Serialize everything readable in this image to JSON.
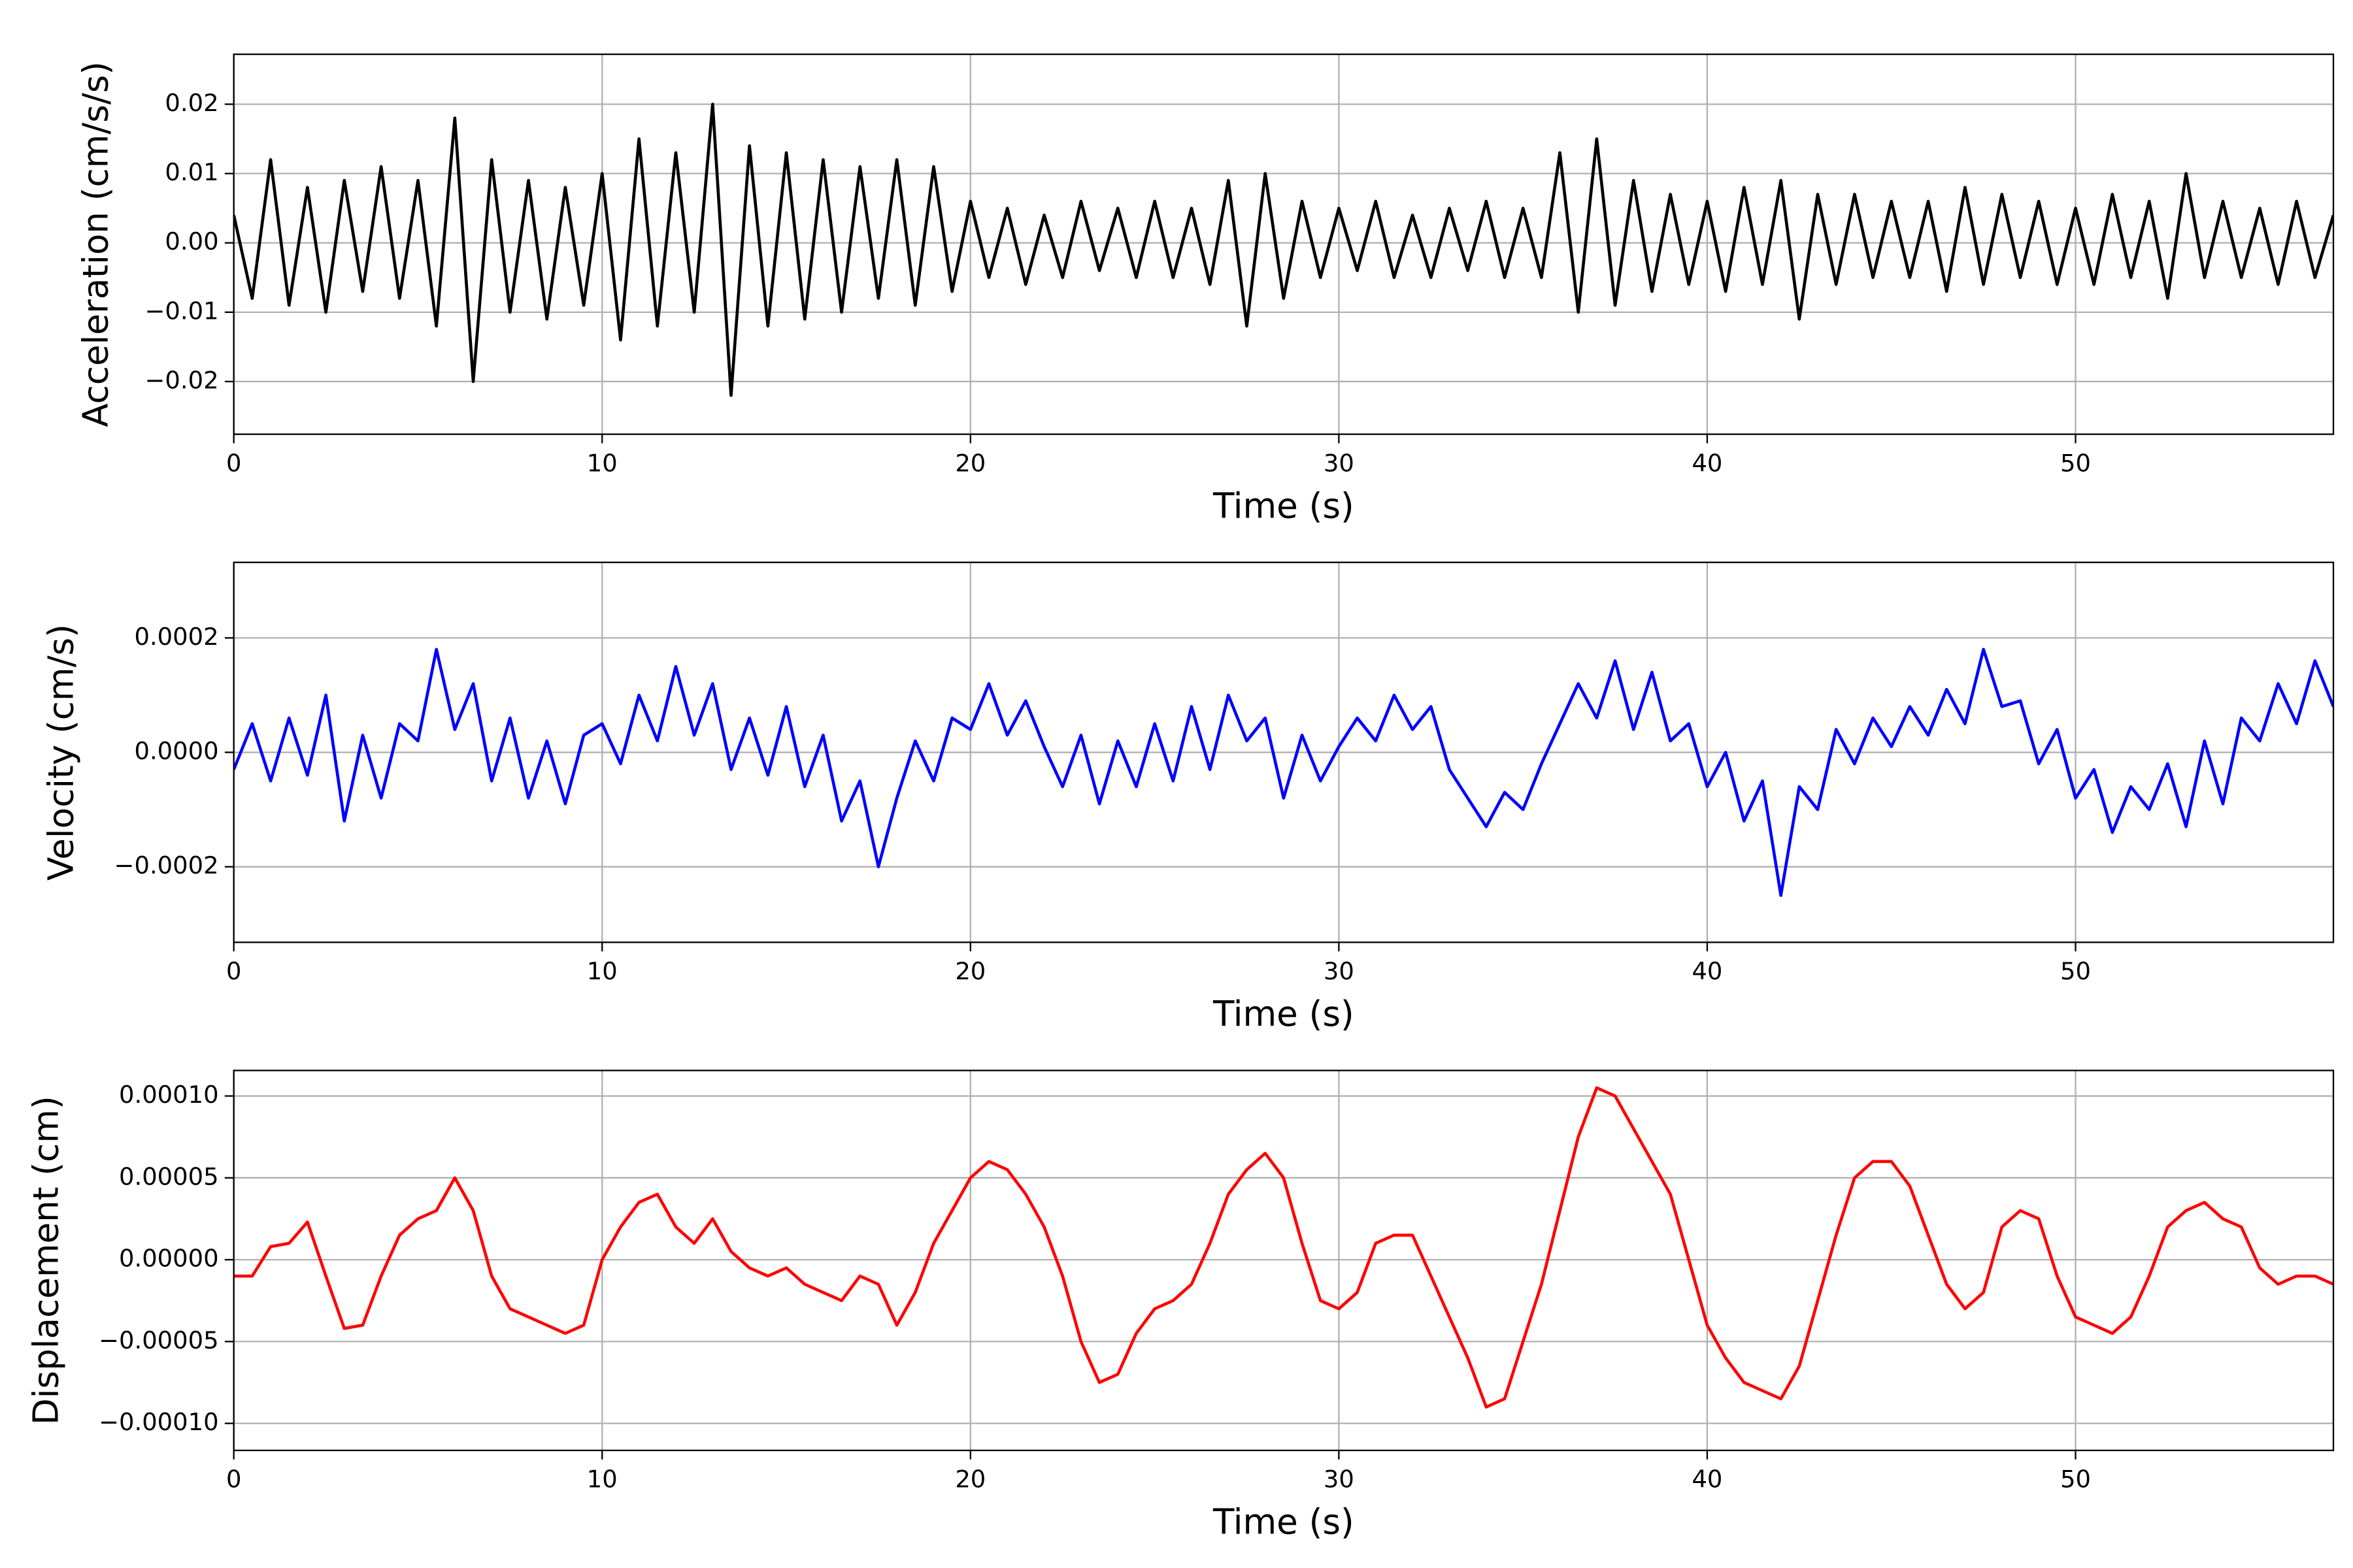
{
  "chart_data": [
    {
      "type": "line",
      "ylabel": "Acceleration (cm/s/s)",
      "xlabel": "Time (s)",
      "color": "#000000",
      "grid": true,
      "xlim": [
        0,
        57
      ],
      "xticks": [
        0,
        10,
        20,
        30,
        40,
        50
      ],
      "ylim": [
        -0.0276,
        0.0272
      ],
      "yticks": [
        {
          "value": -0.02,
          "label": "−0.02"
        },
        {
          "value": -0.01,
          "label": "−0.01"
        },
        {
          "value": 0,
          "label": "0.00"
        },
        {
          "value": 0.01,
          "label": "0.01"
        },
        {
          "value": 0.02,
          "label": "0.02"
        }
      ],
      "x": [
        0,
        0.5,
        1,
        1.5,
        2,
        2.5,
        3,
        3.5,
        4,
        4.5,
        5,
        5.5,
        6,
        6.5,
        7,
        7.5,
        8,
        8.5,
        9,
        9.5,
        10,
        10.5,
        11,
        11.5,
        12,
        12.5,
        13,
        13.5,
        14,
        14.5,
        15,
        15.5,
        16,
        16.5,
        17,
        17.5,
        18,
        18.5,
        19,
        19.5,
        20,
        20.5,
        21,
        21.5,
        22,
        22.5,
        23,
        23.5,
        24,
        24.5,
        25,
        25.5,
        26,
        26.5,
        27,
        27.5,
        28,
        28.5,
        29,
        29.5,
        30,
        30.5,
        31,
        31.5,
        32,
        32.5,
        33,
        33.5,
        34,
        34.5,
        35,
        35.5,
        36,
        36.5,
        37,
        37.5,
        38,
        38.5,
        39,
        39.5,
        40,
        40.5,
        41,
        41.5,
        42,
        42.5,
        43,
        43.5,
        44,
        44.5,
        45,
        45.5,
        46,
        46.5,
        47,
        47.5,
        48,
        48.5,
        49,
        49.5,
        50,
        50.5,
        51,
        51.5,
        52,
        52.5,
        53,
        53.5,
        54,
        54.5,
        55,
        55.5,
        56,
        56.5,
        57
      ],
      "values": [
        0.004,
        -0.008,
        0.012,
        -0.009,
        0.008,
        -0.01,
        0.009,
        -0.007,
        0.011,
        -0.008,
        0.009,
        -0.012,
        0.018,
        -0.02,
        0.012,
        -0.01,
        0.009,
        -0.011,
        0.008,
        -0.009,
        0.01,
        -0.014,
        0.015,
        -0.012,
        0.013,
        -0.01,
        0.02,
        -0.022,
        0.014,
        -0.012,
        0.013,
        -0.011,
        0.012,
        -0.01,
        0.011,
        -0.008,
        0.012,
        -0.009,
        0.011,
        -0.007,
        0.006,
        -0.005,
        0.005,
        -0.006,
        0.004,
        -0.005,
        0.006,
        -0.004,
        0.005,
        -0.005,
        0.006,
        -0.005,
        0.005,
        -0.006,
        0.009,
        -0.012,
        0.01,
        -0.008,
        0.006,
        -0.005,
        0.005,
        -0.004,
        0.006,
        -0.005,
        0.004,
        -0.005,
        0.005,
        -0.004,
        0.006,
        -0.005,
        0.005,
        -0.005,
        0.013,
        -0.01,
        0.015,
        -0.009,
        0.009,
        -0.007,
        0.007,
        -0.006,
        0.006,
        -0.007,
        0.008,
        -0.006,
        0.009,
        -0.011,
        0.007,
        -0.006,
        0.007,
        -0.005,
        0.006,
        -0.005,
        0.006,
        -0.007,
        0.008,
        -0.006,
        0.007,
        -0.005,
        0.006,
        -0.006,
        0.005,
        -0.006,
        0.007,
        -0.005,
        0.006,
        -0.008,
        0.01,
        -0.005,
        0.006,
        -0.005,
        0.005,
        -0.006,
        0.006,
        -0.005,
        0.004
      ]
    },
    {
      "type": "line",
      "ylabel": "Velocity (cm/s)",
      "xlabel": "Time (s)",
      "color": "#0000ff",
      "grid": true,
      "xlim": [
        0,
        57
      ],
      "xticks": [
        0,
        10,
        20,
        30,
        40,
        50
      ],
      "ylim": [
        -0.000332,
        0.000332
      ],
      "yticks": [
        {
          "value": -0.0002,
          "label": "−0.0002"
        },
        {
          "value": 0,
          "label": "0.0000"
        },
        {
          "value": 0.0002,
          "label": "0.0002"
        }
      ],
      "x": [
        0,
        0.5,
        1,
        1.5,
        2,
        2.5,
        3,
        3.5,
        4,
        4.5,
        5,
        5.5,
        6,
        6.5,
        7,
        7.5,
        8,
        8.5,
        9,
        9.5,
        10,
        10.5,
        11,
        11.5,
        12,
        12.5,
        13,
        13.5,
        14,
        14.5,
        15,
        15.5,
        16,
        16.5,
        17,
        17.5,
        18,
        18.5,
        19,
        19.5,
        20,
        20.5,
        21,
        21.5,
        22,
        22.5,
        23,
        23.5,
        24,
        24.5,
        25,
        25.5,
        26,
        26.5,
        27,
        27.5,
        28,
        28.5,
        29,
        29.5,
        30,
        30.5,
        31,
        31.5,
        32,
        32.5,
        33,
        33.5,
        34,
        34.5,
        35,
        35.5,
        36,
        36.5,
        37,
        37.5,
        38,
        38.5,
        39,
        39.5,
        40,
        40.5,
        41,
        41.5,
        42,
        42.5,
        43,
        43.5,
        44,
        44.5,
        45,
        45.5,
        46,
        46.5,
        47,
        47.5,
        48,
        48.5,
        49,
        49.5,
        50,
        50.5,
        51,
        51.5,
        52,
        52.5,
        53,
        53.5,
        54,
        54.5,
        55,
        55.5,
        56,
        56.5,
        57
      ],
      "values": [
        -3e-05,
        5e-05,
        -5e-05,
        6e-05,
        -4e-05,
        0.0001,
        -0.00012,
        3e-05,
        -8e-05,
        5e-05,
        2e-05,
        0.00018,
        4e-05,
        0.00012,
        -5e-05,
        6e-05,
        -8e-05,
        2e-05,
        -9e-05,
        3e-05,
        5e-05,
        -2e-05,
        0.0001,
        2e-05,
        0.00015,
        3e-05,
        0.00012,
        -3e-05,
        6e-05,
        -4e-05,
        8e-05,
        -6e-05,
        3e-05,
        -0.00012,
        -5e-05,
        -0.0002,
        -8e-05,
        2e-05,
        -5e-05,
        6e-05,
        4e-05,
        0.00012,
        3e-05,
        9e-05,
        1e-05,
        -6e-05,
        3e-05,
        -9e-05,
        2e-05,
        -6e-05,
        5e-05,
        -5e-05,
        8e-05,
        -3e-05,
        0.0001,
        2e-05,
        6e-05,
        -8e-05,
        3e-05,
        -5e-05,
        1e-05,
        6e-05,
        2e-05,
        0.0001,
        4e-05,
        8e-05,
        -3e-05,
        -8e-05,
        -0.00013,
        -7e-05,
        -0.0001,
        -2e-05,
        5e-05,
        0.00012,
        6e-05,
        0.00016,
        4e-05,
        0.00014,
        2e-05,
        5e-05,
        -6e-05,
        0,
        -0.00012,
        -5e-05,
        -0.00025,
        -6e-05,
        -0.0001,
        4e-05,
        -2e-05,
        6e-05,
        1e-05,
        8e-05,
        3e-05,
        0.00011,
        5e-05,
        0.00018,
        8e-05,
        9e-05,
        -2e-05,
        4e-05,
        -8e-05,
        -3e-05,
        -0.00014,
        -6e-05,
        -0.0001,
        -2e-05,
        -0.00013,
        2e-05,
        -9e-05,
        6e-05,
        2e-05,
        0.00012,
        5e-05,
        0.00016,
        8e-05
      ]
    },
    {
      "type": "line",
      "ylabel": "Displacement (cm)",
      "xlabel": "Time (s)",
      "color": "#ff0000",
      "grid": true,
      "xlim": [
        0,
        57
      ],
      "xticks": [
        0,
        10,
        20,
        30,
        40,
        50
      ],
      "ylim": [
        -0.0001165,
        0.0001156
      ],
      "yticks": [
        {
          "value": -0.0001,
          "label": "−0.00010"
        },
        {
          "value": -5e-05,
          "label": "−0.00005"
        },
        {
          "value": 0,
          "label": "0.00000"
        },
        {
          "value": 5e-05,
          "label": "0.00005"
        },
        {
          "value": 0.0001,
          "label": "0.00010"
        }
      ],
      "x": [
        0,
        0.5,
        1,
        1.5,
        2,
        2.5,
        3,
        3.5,
        4,
        4.5,
        5,
        5.5,
        6,
        6.5,
        7,
        7.5,
        8,
        8.5,
        9,
        9.5,
        10,
        10.5,
        11,
        11.5,
        12,
        12.5,
        13,
        13.5,
        14,
        14.5,
        15,
        15.5,
        16,
        16.5,
        17,
        17.5,
        18,
        18.5,
        19,
        19.5,
        20,
        20.5,
        21,
        21.5,
        22,
        22.5,
        23,
        23.5,
        24,
        24.5,
        25,
        25.5,
        26,
        26.5,
        27,
        27.5,
        28,
        28.5,
        29,
        29.5,
        30,
        30.5,
        31,
        31.5,
        32,
        32.5,
        33,
        33.5,
        34,
        34.5,
        35,
        35.5,
        36,
        36.5,
        37,
        37.5,
        38,
        38.5,
        39,
        39.5,
        40,
        40.5,
        41,
        41.5,
        42,
        42.5,
        43,
        43.5,
        44,
        44.5,
        45,
        45.5,
        46,
        46.5,
        47,
        47.5,
        48,
        48.5,
        49,
        49.5,
        50,
        50.5,
        51,
        51.5,
        52,
        52.5,
        53,
        53.5,
        54,
        54.5,
        55,
        55.5,
        56,
        56.5,
        57
      ],
      "values": [
        -1e-05,
        -1e-05,
        8e-06,
        1e-05,
        2.3e-05,
        -1e-05,
        -4.2e-05,
        -4e-05,
        -1e-05,
        1.5e-05,
        2.5e-05,
        3e-05,
        5e-05,
        3e-05,
        -1e-05,
        -3e-05,
        -3.5e-05,
        -4e-05,
        -4.5e-05,
        -4e-05,
        0,
        2e-05,
        3.5e-05,
        4e-05,
        2e-05,
        1e-05,
        2.5e-05,
        5e-06,
        -5e-06,
        -1e-05,
        -5e-06,
        -1.5e-05,
        -2e-05,
        -2.5e-05,
        -1e-05,
        -1.5e-05,
        -4e-05,
        -2e-05,
        1e-05,
        3e-05,
        5e-05,
        6e-05,
        5.5e-05,
        4e-05,
        2e-05,
        -1e-05,
        -5e-05,
        -7.5e-05,
        -7e-05,
        -4.5e-05,
        -3e-05,
        -2.5e-05,
        -1.5e-05,
        1e-05,
        4e-05,
        5.5e-05,
        6.5e-05,
        5e-05,
        1e-05,
        -2.5e-05,
        -3e-05,
        -2e-05,
        1e-05,
        1.5e-05,
        1.5e-05,
        -1e-05,
        -3.5e-05,
        -6e-05,
        -9e-05,
        -8.5e-05,
        -5e-05,
        -1.5e-05,
        3e-05,
        7.5e-05,
        0.000105,
        0.0001,
        8e-05,
        6e-05,
        4e-05,
        0,
        -4e-05,
        -6e-05,
        -7.5e-05,
        -8e-05,
        -8.5e-05,
        -6.5e-05,
        -2.5e-05,
        1.5e-05,
        5e-05,
        6e-05,
        6e-05,
        4.5e-05,
        1.5e-05,
        -1.5e-05,
        -3e-05,
        -2e-05,
        2e-05,
        3e-05,
        2.5e-05,
        -1e-05,
        -3.5e-05,
        -4e-05,
        -4.5e-05,
        -3.5e-05,
        -1e-05,
        2e-05,
        3e-05,
        3.5e-05,
        2.5e-05,
        2e-05,
        -5e-06,
        -1.5e-05,
        -1e-05,
        -1e-05,
        -1.5e-05
      ]
    }
  ]
}
